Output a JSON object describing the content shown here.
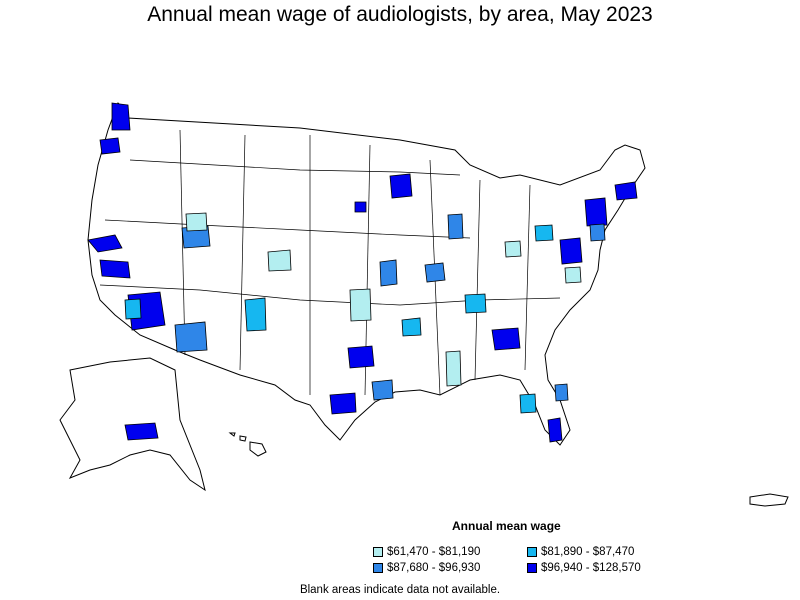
{
  "title": "Annual mean wage of audiologists, by area, May 2023",
  "legend": {
    "title": "Annual mean wage",
    "items": [
      {
        "label": "$61,470 - $81,190",
        "color": "#b3eef0"
      },
      {
        "label": "$81,890 - $87,470",
        "color": "#16b7f0"
      },
      {
        "label": "$87,680 - $96,930",
        "color": "#2f86e8"
      },
      {
        "label": "$96,940 - $128,570",
        "color": "#0000ee"
      }
    ]
  },
  "footnote": "Blank areas indicate data not available."
}
